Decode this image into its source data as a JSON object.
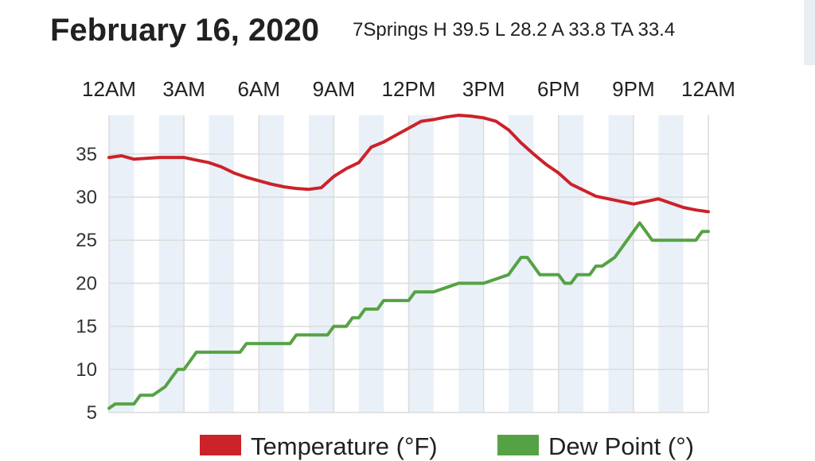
{
  "page": {
    "title": "February 16, 2020",
    "summary": "7Springs H 39.5 L 28.2 A 33.8 TA 33.4"
  },
  "colors": {
    "temperature": "#cc2229",
    "dew_point": "#55a244",
    "band": "#e9f0f8",
    "grid": "#dcdcdc"
  },
  "chart_data": {
    "type": "line",
    "x_tick_labels": [
      "12AM",
      "3AM",
      "6AM",
      "9AM",
      "12PM",
      "3PM",
      "6PM",
      "9PM",
      "12AM"
    ],
    "x_tick_hours": [
      0,
      3,
      6,
      9,
      12,
      15,
      18,
      21,
      24
    ],
    "xlim": [
      0,
      24
    ],
    "ylim": [
      5,
      39.5
    ],
    "y_ticks": [
      5,
      10,
      15,
      20,
      25,
      30,
      35
    ],
    "grid": true,
    "legend_position": "bottom",
    "series": [
      {
        "name": "Temperature (°F)",
        "color": "#cc2229",
        "points": [
          [
            0,
            34.6
          ],
          [
            0.5,
            34.8
          ],
          [
            1,
            34.4
          ],
          [
            2,
            34.6
          ],
          [
            3,
            34.6
          ],
          [
            3.5,
            34.3
          ],
          [
            4,
            34.0
          ],
          [
            4.5,
            33.5
          ],
          [
            5,
            32.8
          ],
          [
            5.5,
            32.3
          ],
          [
            6,
            31.9
          ],
          [
            6.5,
            31.5
          ],
          [
            7,
            31.2
          ],
          [
            7.5,
            31.0
          ],
          [
            8,
            30.9
          ],
          [
            8.5,
            31.1
          ],
          [
            9,
            32.4
          ],
          [
            9.5,
            33.3
          ],
          [
            10,
            34.0
          ],
          [
            10.5,
            35.8
          ],
          [
            11,
            36.4
          ],
          [
            11.5,
            37.2
          ],
          [
            12,
            38.0
          ],
          [
            12.5,
            38.8
          ],
          [
            13,
            39.0
          ],
          [
            13.5,
            39.3
          ],
          [
            14,
            39.5
          ],
          [
            14.5,
            39.4
          ],
          [
            15,
            39.2
          ],
          [
            15.5,
            38.8
          ],
          [
            16,
            37.8
          ],
          [
            16.5,
            36.3
          ],
          [
            17,
            35.0
          ],
          [
            17.5,
            33.8
          ],
          [
            18,
            32.8
          ],
          [
            18.5,
            31.5
          ],
          [
            19,
            30.8
          ],
          [
            19.5,
            30.1
          ],
          [
            20,
            29.8
          ],
          [
            20.5,
            29.5
          ],
          [
            21,
            29.2
          ],
          [
            21.5,
            29.5
          ],
          [
            22,
            29.8
          ],
          [
            22.5,
            29.3
          ],
          [
            23,
            28.8
          ],
          [
            23.5,
            28.5
          ],
          [
            24,
            28.3
          ]
        ]
      },
      {
        "name": "Dew Point (°)",
        "color": "#55a244",
        "points": [
          [
            0,
            5.5
          ],
          [
            0.25,
            6
          ],
          [
            0.75,
            6
          ],
          [
            1,
            6
          ],
          [
            1.25,
            7
          ],
          [
            1.75,
            7
          ],
          [
            2,
            7.5
          ],
          [
            2.25,
            8
          ],
          [
            2.5,
            9
          ],
          [
            2.75,
            10
          ],
          [
            3,
            10
          ],
          [
            3.25,
            11
          ],
          [
            3.5,
            12
          ],
          [
            4,
            12
          ],
          [
            5,
            12
          ],
          [
            5.25,
            12
          ],
          [
            5.5,
            13
          ],
          [
            6,
            13
          ],
          [
            7,
            13
          ],
          [
            7.25,
            13
          ],
          [
            7.5,
            14
          ],
          [
            8,
            14
          ],
          [
            8.5,
            14
          ],
          [
            8.75,
            14
          ],
          [
            9,
            15
          ],
          [
            9.5,
            15
          ],
          [
            9.75,
            16
          ],
          [
            10,
            16
          ],
          [
            10.25,
            17
          ],
          [
            10.75,
            17
          ],
          [
            11,
            18
          ],
          [
            11.5,
            18
          ],
          [
            12,
            18
          ],
          [
            12.25,
            19
          ],
          [
            12.75,
            19
          ],
          [
            13,
            19
          ],
          [
            13.5,
            19.5
          ],
          [
            14,
            20
          ],
          [
            14.5,
            20
          ],
          [
            15,
            20
          ],
          [
            15.5,
            20.5
          ],
          [
            16,
            21
          ],
          [
            16.25,
            22
          ],
          [
            16.5,
            23
          ],
          [
            16.75,
            23
          ],
          [
            17,
            22
          ],
          [
            17.25,
            21
          ],
          [
            17.75,
            21
          ],
          [
            18,
            21
          ],
          [
            18.25,
            20
          ],
          [
            18.5,
            20
          ],
          [
            18.75,
            21
          ],
          [
            19,
            21
          ],
          [
            19.25,
            21
          ],
          [
            19.5,
            22
          ],
          [
            19.75,
            22
          ],
          [
            20,
            22.5
          ],
          [
            20.25,
            23
          ],
          [
            20.5,
            24
          ],
          [
            20.75,
            25
          ],
          [
            21,
            26
          ],
          [
            21.25,
            27
          ],
          [
            21.5,
            26
          ],
          [
            21.75,
            25
          ],
          [
            22,
            25
          ],
          [
            22.5,
            25
          ],
          [
            23,
            25
          ],
          [
            23.5,
            25
          ],
          [
            23.75,
            26
          ],
          [
            24,
            26
          ]
        ]
      }
    ]
  }
}
